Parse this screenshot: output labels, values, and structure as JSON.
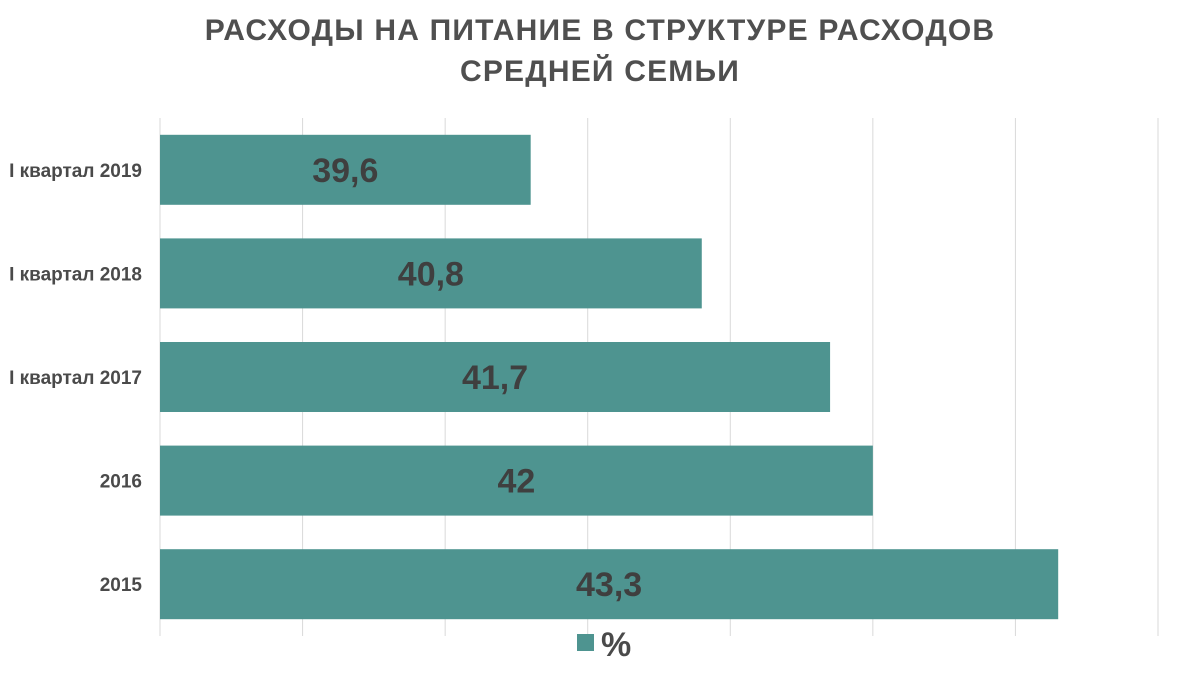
{
  "chart_data": {
    "type": "bar",
    "orientation": "horizontal",
    "title_lines": [
      "РАСХОДЫ НА ПИТАНИЕ В СТРУКТУРЕ РАСХОДОВ",
      "СРЕДНЕЙ СЕМЬИ"
    ],
    "categories": [
      "I квартал 2019",
      "I квартал 2018",
      "I квартал 2017",
      "2016",
      "2015"
    ],
    "series": [
      {
        "name": "%",
        "values": [
          39.6,
          40.8,
          41.7,
          42,
          43.3
        ],
        "value_labels": [
          "39,6",
          "40,8",
          "41,7",
          "42",
          "43,3"
        ]
      }
    ],
    "xlim": [
      37,
      44
    ],
    "grid": true,
    "legend_position": "bottom",
    "colors": {
      "bar": "#4e9490",
      "grid": "#d9d9d9",
      "text": "#4f4f4f"
    }
  }
}
